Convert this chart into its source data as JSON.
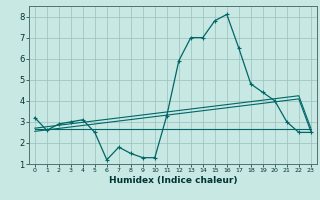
{
  "xlabel": "Humidex (Indice chaleur)",
  "bg_color": "#c8e8e4",
  "grid_color": "#9bbfbb",
  "line_color": "#006666",
  "x_values": [
    0,
    1,
    2,
    3,
    4,
    5,
    6,
    7,
    8,
    9,
    10,
    11,
    12,
    13,
    14,
    15,
    16,
    17,
    18,
    19,
    20,
    21,
    22,
    23
  ],
  "humidex": [
    3.2,
    2.6,
    2.9,
    3.0,
    3.1,
    2.5,
    1.2,
    1.8,
    1.5,
    1.3,
    1.3,
    3.3,
    5.9,
    7.0,
    7.0,
    7.8,
    8.1,
    6.5,
    4.8,
    4.4,
    4.0,
    3.0,
    2.5,
    2.5
  ],
  "trend_a": [
    2.55,
    2.62,
    2.69,
    2.76,
    2.83,
    2.9,
    2.97,
    3.04,
    3.11,
    3.18,
    3.25,
    3.32,
    3.39,
    3.46,
    3.53,
    3.6,
    3.67,
    3.74,
    3.81,
    3.88,
    3.95,
    4.02,
    4.09,
    2.55
  ],
  "trend_b": [
    2.7,
    2.77,
    2.84,
    2.91,
    2.98,
    3.05,
    3.12,
    3.19,
    3.26,
    3.33,
    3.4,
    3.47,
    3.54,
    3.61,
    3.68,
    3.75,
    3.82,
    3.89,
    3.96,
    4.03,
    4.1,
    4.17,
    4.24,
    2.7
  ],
  "trend_c": [
    2.65,
    2.65,
    2.65,
    2.65,
    2.65,
    2.65,
    2.65,
    2.65,
    2.65,
    2.65,
    2.65,
    2.65,
    2.65,
    2.65,
    2.65,
    2.65,
    2.65,
    2.65,
    2.65,
    2.65,
    2.65,
    2.65,
    2.65,
    2.65
  ],
  "ylim": [
    1.0,
    8.5
  ],
  "xlim": [
    -0.5,
    23.5
  ],
  "yticks": [
    1,
    2,
    3,
    4,
    5,
    6,
    7,
    8
  ],
  "xticks": [
    0,
    1,
    2,
    3,
    4,
    5,
    6,
    7,
    8,
    9,
    10,
    11,
    12,
    13,
    14,
    15,
    16,
    17,
    18,
    19,
    20,
    21,
    22,
    23
  ],
  "xlabel_fontsize": 6.5,
  "tick_fontsize_x": 4.5,
  "tick_fontsize_y": 6.0
}
